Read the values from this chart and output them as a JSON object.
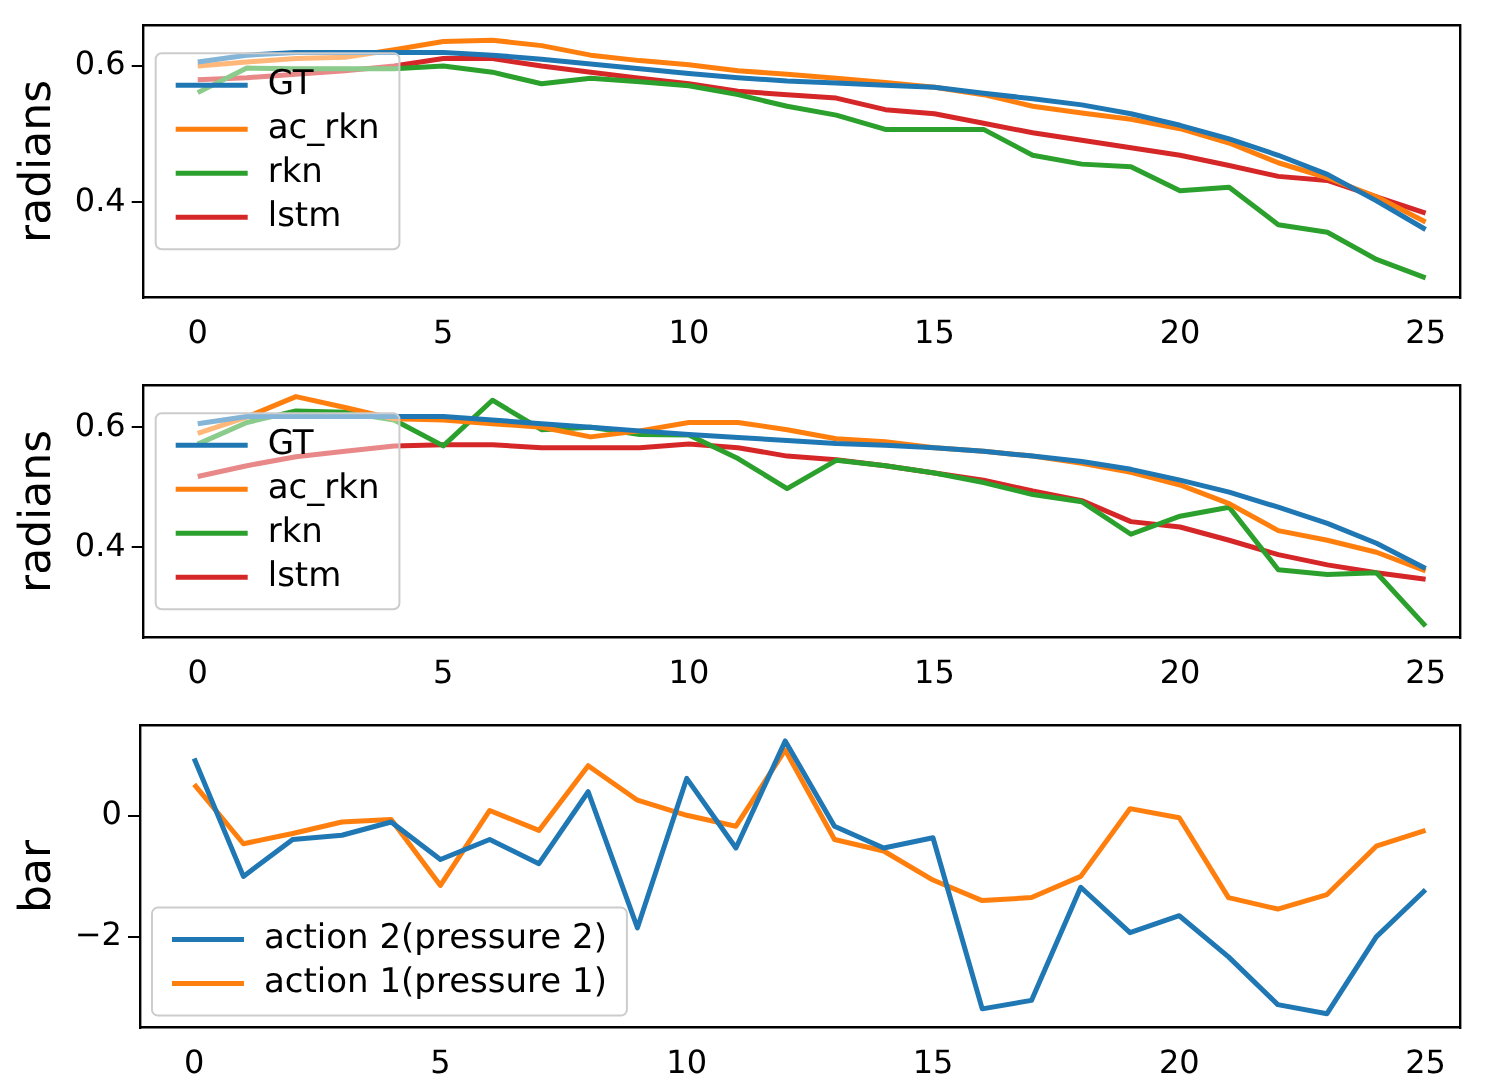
{
  "chart_data": [
    {
      "type": "line",
      "ylabel": "radians",
      "x": [
        0,
        1,
        2,
        3,
        4,
        5,
        6,
        7,
        8,
        9,
        10,
        11,
        12,
        13,
        14,
        15,
        16,
        17,
        18,
        19,
        20,
        21,
        22,
        23,
        24,
        25
      ],
      "xlim": [
        -1.1,
        25.7
      ],
      "xticks": [
        0,
        5,
        10,
        15,
        20,
        25
      ],
      "ylim": [
        0.26,
        0.66
      ],
      "yticks": [
        0.4,
        0.6
      ],
      "grid": false,
      "legend": "top left",
      "marker": "none",
      "line_style": "solid",
      "series": [
        {
          "name": "GT",
          "color": "#1f77b4",
          "values": [
            0.606,
            0.616,
            0.62,
            0.62,
            0.62,
            0.62,
            0.616,
            0.61,
            0.603,
            0.596,
            0.589,
            0.583,
            0.578,
            0.575,
            0.572,
            0.569,
            0.56,
            0.552,
            0.543,
            0.53,
            0.513,
            0.493,
            0.469,
            0.441,
            0.402,
            0.36
          ]
        },
        {
          "name": "ac_rkn",
          "color": "#ff7f0e",
          "values": [
            0.6,
            0.606,
            0.611,
            0.613,
            0.624,
            0.636,
            0.638,
            0.63,
            0.616,
            0.608,
            0.602,
            0.593,
            0.588,
            0.582,
            0.576,
            0.569,
            0.558,
            0.541,
            0.531,
            0.522,
            0.508,
            0.487,
            0.458,
            0.436,
            0.408,
            0.371
          ]
        },
        {
          "name": "rkn",
          "color": "#2ca02c",
          "values": [
            0.561,
            0.597,
            0.596,
            0.596,
            0.596,
            0.6,
            0.591,
            0.574,
            0.582,
            0.577,
            0.571,
            0.558,
            0.541,
            0.528,
            0.507,
            0.507,
            0.507,
            0.469,
            0.456,
            0.452,
            0.417,
            0.422,
            0.367,
            0.356,
            0.316,
            0.289
          ]
        },
        {
          "name": "lstm",
          "color": "#d62728",
          "values": [
            0.58,
            0.583,
            0.588,
            0.593,
            0.6,
            0.611,
            0.611,
            0.6,
            0.591,
            0.582,
            0.574,
            0.563,
            0.558,
            0.553,
            0.536,
            0.53,
            0.516,
            0.502,
            0.491,
            0.48,
            0.469,
            0.454,
            0.438,
            0.432,
            0.408,
            0.384
          ]
        }
      ]
    },
    {
      "type": "line",
      "ylabel": "radians",
      "x": [
        0,
        1,
        2,
        3,
        4,
        5,
        6,
        7,
        8,
        9,
        10,
        11,
        12,
        13,
        14,
        15,
        16,
        17,
        18,
        19,
        20,
        21,
        22,
        23,
        24,
        25
      ],
      "xlim": [
        -1.1,
        25.7
      ],
      "xticks": [
        0,
        5,
        10,
        15,
        20,
        25
      ],
      "ylim": [
        0.25,
        0.67
      ],
      "yticks": [
        0.4,
        0.6
      ],
      "grid": false,
      "legend": "top left",
      "marker": "none",
      "line_style": "solid",
      "series": [
        {
          "name": "GT",
          "color": "#1f77b4",
          "values": [
            0.606,
            0.618,
            0.618,
            0.618,
            0.618,
            0.618,
            0.612,
            0.606,
            0.6,
            0.594,
            0.588,
            0.583,
            0.578,
            0.573,
            0.57,
            0.566,
            0.56,
            0.552,
            0.543,
            0.53,
            0.512,
            0.492,
            0.467,
            0.44,
            0.407,
            0.365
          ]
        },
        {
          "name": "ac_rkn",
          "color": "#ff7f0e",
          "values": [
            0.59,
            0.617,
            0.651,
            0.633,
            0.614,
            0.612,
            0.606,
            0.6,
            0.584,
            0.594,
            0.608,
            0.608,
            0.596,
            0.581,
            0.576,
            0.566,
            0.56,
            0.552,
            0.54,
            0.525,
            0.504,
            0.473,
            0.428,
            0.412,
            0.392,
            0.361
          ]
        },
        {
          "name": "rkn",
          "color": "#2ca02c",
          "values": [
            0.572,
            0.608,
            0.627,
            0.625,
            0.612,
            0.569,
            0.645,
            0.596,
            0.6,
            0.588,
            0.587,
            0.548,
            0.498,
            0.545,
            0.536,
            0.524,
            0.508,
            0.488,
            0.476,
            0.422,
            0.452,
            0.467,
            0.363,
            0.355,
            0.358,
            0.269
          ]
        },
        {
          "name": "lstm",
          "color": "#d62728",
          "values": [
            0.518,
            0.536,
            0.551,
            0.56,
            0.569,
            0.571,
            0.571,
            0.566,
            0.566,
            0.566,
            0.572,
            0.566,
            0.552,
            0.546,
            0.536,
            0.524,
            0.512,
            0.494,
            0.478,
            0.443,
            0.434,
            0.412,
            0.388,
            0.371,
            0.358,
            0.347
          ]
        }
      ]
    },
    {
      "type": "line",
      "ylabel": "bar",
      "x": [
        0,
        1,
        2,
        3,
        4,
        5,
        6,
        7,
        8,
        9,
        10,
        11,
        12,
        13,
        14,
        15,
        16,
        17,
        18,
        19,
        20,
        21,
        22,
        23,
        24,
        25
      ],
      "xlim": [
        -1.1,
        25.7
      ],
      "xticks": [
        0,
        5,
        10,
        15,
        20,
        25
      ],
      "ylim": [
        -3.5,
        1.5
      ],
      "yticks": [
        {
          "value": -2,
          "label": "−2"
        },
        0
      ],
      "grid": false,
      "legend": "bottom left",
      "marker": "none",
      "line_style": "solid",
      "series": [
        {
          "name": "action 2(pressure 2)",
          "color": "#1f77b4",
          "values": [
            0.95,
            -1.0,
            -0.39,
            -0.32,
            -0.1,
            -0.72,
            -0.39,
            -0.79,
            0.4,
            -1.85,
            0.62,
            -0.53,
            1.24,
            -0.17,
            -0.53,
            -0.36,
            -3.19,
            -3.05,
            -1.18,
            -1.93,
            -1.65,
            -2.33,
            -3.12,
            -3.27,
            -2.0,
            -1.22
          ]
        },
        {
          "name": "action 1(pressure 1)",
          "color": "#ff7f0e",
          "values": [
            0.52,
            -0.46,
            -0.29,
            -0.1,
            -0.06,
            -1.15,
            0.09,
            -0.24,
            0.83,
            0.26,
            0.01,
            -0.17,
            1.09,
            -0.39,
            -0.58,
            -1.06,
            -1.4,
            -1.35,
            -1.0,
            0.12,
            -0.03,
            -1.35,
            -1.54,
            -1.3,
            -0.5,
            -0.24
          ]
        }
      ]
    }
  ]
}
